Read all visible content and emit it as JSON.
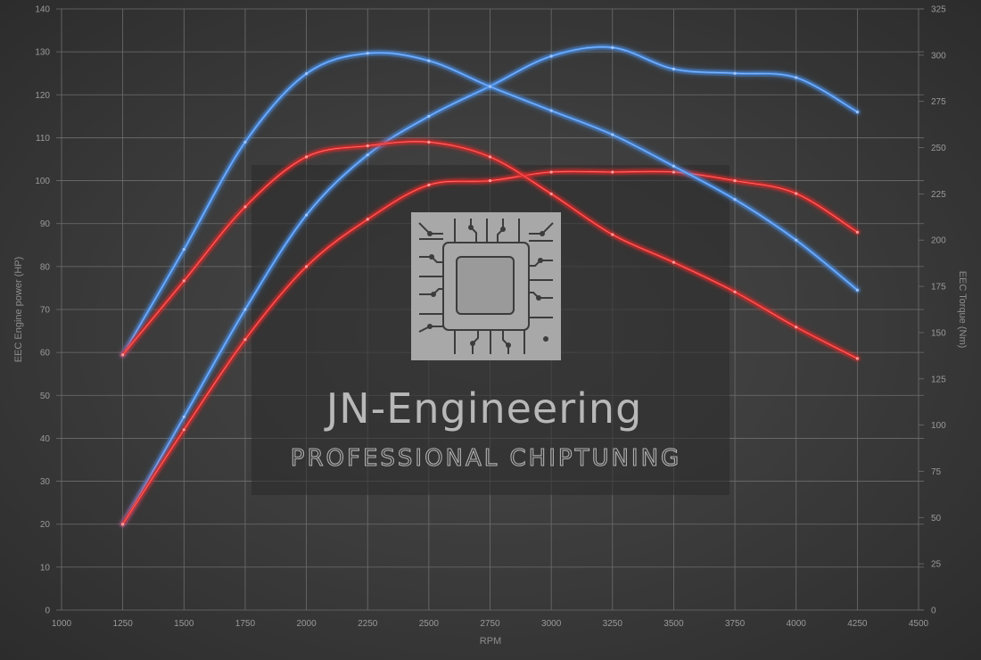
{
  "chart_data": {
    "type": "line",
    "title": "",
    "xlabel": "RPM",
    "ylabel_left": "EEC Engine power (HP)",
    "ylabel_right": "EEC Torque (Nm)",
    "xlim": [
      1000,
      4500
    ],
    "ylim_left": [
      0,
      140
    ],
    "ylim_right": [
      0,
      325
    ],
    "xticks": [
      1000,
      1250,
      1500,
      1750,
      2000,
      2250,
      2500,
      2750,
      3000,
      3250,
      3500,
      3750,
      4000,
      4250,
      4500
    ],
    "yticks_left": [
      0,
      10,
      20,
      30,
      40,
      50,
      60,
      70,
      80,
      90,
      100,
      110,
      120,
      130,
      140
    ],
    "yticks_right": [
      0,
      25,
      50,
      75,
      100,
      125,
      150,
      175,
      200,
      225,
      250,
      275,
      300,
      325
    ],
    "grid": true,
    "legend": "none",
    "series": [
      {
        "axis": "left",
        "color": "#4a90e8",
        "x": [
          1250,
          1500,
          1750,
          2000,
          2250,
          2500,
          2750,
          3000,
          3250,
          3500,
          3750,
          4000,
          4250
        ],
        "values": [
          20,
          45,
          70,
          92,
          106,
          115,
          122,
          129,
          131,
          126,
          125,
          124,
          116
        ]
      },
      {
        "axis": "left",
        "color": "#e02828",
        "x": [
          1250,
          1500,
          1750,
          2000,
          2250,
          2500,
          2750,
          3000,
          3250,
          3500,
          3750,
          4000,
          4250
        ],
        "values": [
          20,
          42,
          63,
          80,
          91,
          99,
          100,
          102,
          102,
          102,
          100,
          97,
          88
        ]
      },
      {
        "axis": "right",
        "color": "#4a90e8",
        "x": [
          1250,
          1500,
          1750,
          2000,
          2250,
          2500,
          2750,
          3000,
          3250,
          3500,
          3750,
          4000,
          4250
        ],
        "values": [
          138,
          195,
          253,
          290,
          301,
          297,
          283,
          270,
          257,
          240,
          222,
          200,
          173
        ]
      },
      {
        "axis": "right",
        "color": "#e02828",
        "x": [
          1250,
          1500,
          1750,
          2000,
          2250,
          2500,
          2750,
          3000,
          3250,
          3500,
          3750,
          4000,
          4250
        ],
        "values": [
          138,
          178,
          218,
          245,
          251,
          253,
          245,
          225,
          203,
          188,
          172,
          153,
          136
        ]
      }
    ]
  },
  "watermark": {
    "title": "JN-Engineering",
    "subtitle": "PROFESSIONAL CHIPTUNING",
    "logo_icon": "chip-icon"
  }
}
